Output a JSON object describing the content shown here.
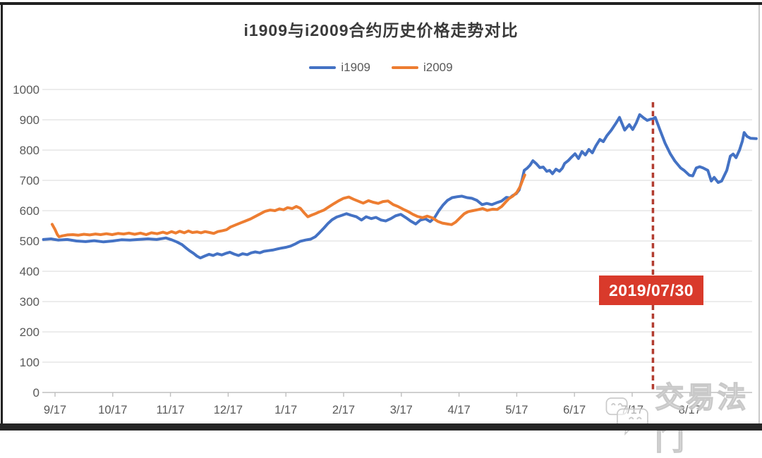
{
  "title": "i1909与i2009合约历史价格走势对比",
  "watermark": {
    "icon": "chat-bubbles-icon",
    "text": "交易法门"
  },
  "annotation": {
    "label": "2019/07/30",
    "u": 10.36,
    "line_color": "#b23c30",
    "box_color": "#d93a2b"
  },
  "chart_data": {
    "type": "line",
    "title": "i1909与i2009合约历史价格走势对比",
    "legend_position": "top-center",
    "grid": true,
    "x_axis": {
      "tick_labels": [
        "9/17",
        "10/17",
        "11/17",
        "12/17",
        "1/17",
        "2/17",
        "3/17",
        "4/17",
        "5/17",
        "6/17",
        "7/17",
        "8/17"
      ],
      "range_u": [
        -0.22,
        12.33
      ],
      "note_u_unit": "months from 9/17 tick"
    },
    "y_axis": {
      "min": 0,
      "max": 1000,
      "step": 100,
      "ticks": [
        0,
        100,
        200,
        300,
        400,
        500,
        600,
        700,
        800,
        900,
        1000
      ]
    },
    "series": [
      {
        "name": "i1909",
        "color": "#4472c4",
        "points": [
          [
            -0.2,
            505
          ],
          [
            -0.07,
            507
          ],
          [
            0.05,
            503
          ],
          [
            0.21,
            505
          ],
          [
            0.37,
            500
          ],
          [
            0.53,
            498
          ],
          [
            0.68,
            501
          ],
          [
            0.84,
            497
          ],
          [
            1.0,
            500
          ],
          [
            1.15,
            504
          ],
          [
            1.3,
            503
          ],
          [
            1.44,
            505
          ],
          [
            1.61,
            507
          ],
          [
            1.76,
            505
          ],
          [
            1.92,
            510
          ],
          [
            2.02,
            504
          ],
          [
            2.11,
            497
          ],
          [
            2.2,
            488
          ],
          [
            2.27,
            477
          ],
          [
            2.33,
            468
          ],
          [
            2.4,
            459
          ],
          [
            2.46,
            450
          ],
          [
            2.52,
            444
          ],
          [
            2.59,
            450
          ],
          [
            2.67,
            456
          ],
          [
            2.74,
            452
          ],
          [
            2.81,
            458
          ],
          [
            2.89,
            454
          ],
          [
            2.96,
            459
          ],
          [
            3.03,
            463
          ],
          [
            3.1,
            457
          ],
          [
            3.18,
            452
          ],
          [
            3.25,
            458
          ],
          [
            3.33,
            455
          ],
          [
            3.4,
            461
          ],
          [
            3.47,
            464
          ],
          [
            3.55,
            461
          ],
          [
            3.62,
            466
          ],
          [
            3.69,
            468
          ],
          [
            3.77,
            470
          ],
          [
            3.84,
            473
          ],
          [
            3.91,
            476
          ],
          [
            4.0,
            479
          ],
          [
            4.08,
            483
          ],
          [
            4.17,
            491
          ],
          [
            4.25,
            499
          ],
          [
            4.34,
            503
          ],
          [
            4.43,
            506
          ],
          [
            4.51,
            514
          ],
          [
            4.58,
            527
          ],
          [
            4.66,
            543
          ],
          [
            4.73,
            558
          ],
          [
            4.8,
            570
          ],
          [
            4.88,
            579
          ],
          [
            4.96,
            584
          ],
          [
            5.05,
            590
          ],
          [
            5.13,
            585
          ],
          [
            5.22,
            580
          ],
          [
            5.31,
            569
          ],
          [
            5.39,
            580
          ],
          [
            5.48,
            574
          ],
          [
            5.56,
            578
          ],
          [
            5.65,
            569
          ],
          [
            5.73,
            566
          ],
          [
            5.82,
            574
          ],
          [
            5.9,
            583
          ],
          [
            5.99,
            588
          ],
          [
            6.08,
            577
          ],
          [
            6.16,
            566
          ],
          [
            6.25,
            556
          ],
          [
            6.33,
            569
          ],
          [
            6.42,
            573
          ],
          [
            6.5,
            564
          ],
          [
            6.58,
            578
          ],
          [
            6.65,
            600
          ],
          [
            6.72,
            618
          ],
          [
            6.8,
            634
          ],
          [
            6.88,
            643
          ],
          [
            6.97,
            646
          ],
          [
            7.05,
            648
          ],
          [
            7.14,
            643
          ],
          [
            7.22,
            641
          ],
          [
            7.31,
            634
          ],
          [
            7.4,
            620
          ],
          [
            7.48,
            624
          ],
          [
            7.57,
            620
          ],
          [
            7.65,
            626
          ],
          [
            7.74,
            632
          ],
          [
            7.82,
            644
          ],
          [
            7.88,
            642
          ],
          [
            7.93,
            650
          ],
          [
            7.99,
            656
          ],
          [
            8.04,
            668
          ],
          [
            8.09,
            700
          ],
          [
            8.13,
            733
          ],
          [
            8.18,
            740
          ],
          [
            8.23,
            750
          ],
          [
            8.28,
            765
          ],
          [
            8.34,
            755
          ],
          [
            8.4,
            742
          ],
          [
            8.46,
            744
          ],
          [
            8.52,
            730
          ],
          [
            8.57,
            733
          ],
          [
            8.62,
            722
          ],
          [
            8.68,
            737
          ],
          [
            8.74,
            730
          ],
          [
            8.79,
            740
          ],
          [
            8.83,
            756
          ],
          [
            8.89,
            765
          ],
          [
            8.95,
            777
          ],
          [
            9.01,
            788
          ],
          [
            9.07,
            772
          ],
          [
            9.13,
            795
          ],
          [
            9.19,
            784
          ],
          [
            9.25,
            802
          ],
          [
            9.31,
            791
          ],
          [
            9.37,
            814
          ],
          [
            9.44,
            835
          ],
          [
            9.5,
            828
          ],
          [
            9.56,
            847
          ],
          [
            9.64,
            866
          ],
          [
            9.72,
            889
          ],
          [
            9.78,
            908
          ],
          [
            9.84,
            880
          ],
          [
            9.87,
            866
          ],
          [
            9.95,
            884
          ],
          [
            10.01,
            868
          ],
          [
            10.07,
            889
          ],
          [
            10.13,
            917
          ],
          [
            10.2,
            906
          ],
          [
            10.26,
            898
          ],
          [
            10.32,
            902
          ],
          [
            10.36,
            903
          ],
          [
            10.4,
            908
          ],
          [
            10.48,
            867
          ],
          [
            10.57,
            823
          ],
          [
            10.66,
            788
          ],
          [
            10.74,
            764
          ],
          [
            10.84,
            741
          ],
          [
            10.9,
            733
          ],
          [
            10.99,
            717
          ],
          [
            11.05,
            715
          ],
          [
            11.11,
            741
          ],
          [
            11.17,
            745
          ],
          [
            11.23,
            741
          ],
          [
            11.31,
            733
          ],
          [
            11.37,
            698
          ],
          [
            11.42,
            710
          ],
          [
            11.49,
            693
          ],
          [
            11.55,
            698
          ],
          [
            11.64,
            733
          ],
          [
            11.7,
            780
          ],
          [
            11.75,
            787
          ],
          [
            11.8,
            775
          ],
          [
            11.86,
            800
          ],
          [
            11.91,
            830
          ],
          [
            11.94,
            858
          ],
          [
            11.99,
            845
          ],
          [
            12.05,
            839
          ],
          [
            12.15,
            838
          ]
        ]
      },
      {
        "name": "i2009",
        "color": "#ed7d31",
        "points": [
          [
            -0.05,
            555
          ],
          [
            0.0,
            538
          ],
          [
            0.04,
            521
          ],
          [
            0.07,
            514
          ],
          [
            0.13,
            517
          ],
          [
            0.21,
            520
          ],
          [
            0.31,
            521
          ],
          [
            0.4,
            519
          ],
          [
            0.5,
            522
          ],
          [
            0.6,
            520
          ],
          [
            0.7,
            523
          ],
          [
            0.79,
            521
          ],
          [
            0.89,
            524
          ],
          [
            0.99,
            521
          ],
          [
            1.09,
            525
          ],
          [
            1.19,
            523
          ],
          [
            1.28,
            526
          ],
          [
            1.38,
            522
          ],
          [
            1.48,
            526
          ],
          [
            1.58,
            521
          ],
          [
            1.67,
            527
          ],
          [
            1.77,
            524
          ],
          [
            1.87,
            529
          ],
          [
            1.94,
            525
          ],
          [
            2.02,
            531
          ],
          [
            2.09,
            526
          ],
          [
            2.16,
            532
          ],
          [
            2.24,
            527
          ],
          [
            2.31,
            533
          ],
          [
            2.38,
            528
          ],
          [
            2.46,
            530
          ],
          [
            2.53,
            527
          ],
          [
            2.6,
            531
          ],
          [
            2.68,
            528
          ],
          [
            2.75,
            525
          ],
          [
            2.82,
            531
          ],
          [
            2.9,
            534
          ],
          [
            2.97,
            537
          ],
          [
            3.04,
            546
          ],
          [
            3.13,
            553
          ],
          [
            3.22,
            560
          ],
          [
            3.3,
            566
          ],
          [
            3.39,
            573
          ],
          [
            3.47,
            581
          ],
          [
            3.56,
            590
          ],
          [
            3.64,
            598
          ],
          [
            3.73,
            602
          ],
          [
            3.81,
            600
          ],
          [
            3.89,
            606
          ],
          [
            3.96,
            603
          ],
          [
            4.03,
            610
          ],
          [
            4.11,
            607
          ],
          [
            4.18,
            614
          ],
          [
            4.25,
            608
          ],
          [
            4.32,
            592
          ],
          [
            4.38,
            580
          ],
          [
            4.44,
            585
          ],
          [
            4.51,
            590
          ],
          [
            4.58,
            596
          ],
          [
            4.66,
            602
          ],
          [
            4.74,
            612
          ],
          [
            4.83,
            623
          ],
          [
            4.91,
            632
          ],
          [
            5.0,
            641
          ],
          [
            5.09,
            645
          ],
          [
            5.17,
            638
          ],
          [
            5.26,
            631
          ],
          [
            5.34,
            625
          ],
          [
            5.43,
            633
          ],
          [
            5.51,
            628
          ],
          [
            5.6,
            624
          ],
          [
            5.68,
            630
          ],
          [
            5.77,
            632
          ],
          [
            5.86,
            620
          ],
          [
            5.94,
            614
          ],
          [
            6.03,
            605
          ],
          [
            6.11,
            598
          ],
          [
            6.2,
            588
          ],
          [
            6.28,
            581
          ],
          [
            6.37,
            577
          ],
          [
            6.45,
            582
          ],
          [
            6.54,
            576
          ],
          [
            6.63,
            565
          ],
          [
            6.71,
            559
          ],
          [
            6.8,
            556
          ],
          [
            6.87,
            554
          ],
          [
            6.94,
            562
          ],
          [
            7.02,
            577
          ],
          [
            7.09,
            590
          ],
          [
            7.16,
            597
          ],
          [
            7.24,
            600
          ],
          [
            7.32,
            603
          ],
          [
            7.41,
            607
          ],
          [
            7.49,
            601
          ],
          [
            7.58,
            605
          ],
          [
            7.66,
            604
          ],
          [
            7.74,
            614
          ],
          [
            7.81,
            629
          ],
          [
            7.87,
            641
          ],
          [
            7.93,
            648
          ],
          [
            8.0,
            660
          ],
          [
            8.06,
            680
          ],
          [
            8.1,
            700
          ],
          [
            8.14,
            718
          ]
        ]
      }
    ]
  }
}
